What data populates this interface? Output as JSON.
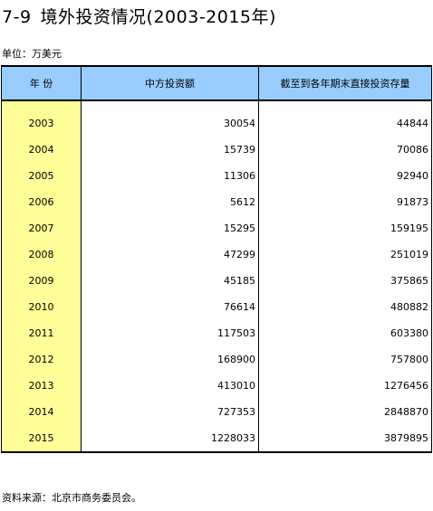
{
  "title": {
    "number": "7-9",
    "text": "境外投资情况(2003-2015年)"
  },
  "unit": "单位：万美元",
  "table": {
    "headers": [
      "年  份",
      "中方投资额",
      "截至到各年期末直接投资存量"
    ],
    "rows": [
      {
        "year": "2003",
        "investment": "30054",
        "stock": "44844"
      },
      {
        "year": "2004",
        "investment": "15739",
        "stock": "70086"
      },
      {
        "year": "2005",
        "investment": "11306",
        "stock": "92940"
      },
      {
        "year": "2006",
        "investment": "5612",
        "stock": "91873"
      },
      {
        "year": "2007",
        "investment": "15295",
        "stock": "159195"
      },
      {
        "year": "2008",
        "investment": "47299",
        "stock": "251019"
      },
      {
        "year": "2009",
        "investment": "45185",
        "stock": "375865"
      },
      {
        "year": "2010",
        "investment": "76614",
        "stock": "480882"
      },
      {
        "year": "2011",
        "investment": "117503",
        "stock": "603380"
      },
      {
        "year": "2012",
        "investment": "168900",
        "stock": "757800"
      },
      {
        "year": "2013",
        "investment": "413010",
        "stock": "1276456"
      },
      {
        "year": "2014",
        "investment": "727353",
        "stock": "2848870"
      },
      {
        "year": "2015",
        "investment": "1228033",
        "stock": "3879895"
      }
    ]
  },
  "source": "资料来源：北京市商务委员会。",
  "colors": {
    "header_bg": "#99ccff",
    "year_bg": "#ffff99"
  }
}
